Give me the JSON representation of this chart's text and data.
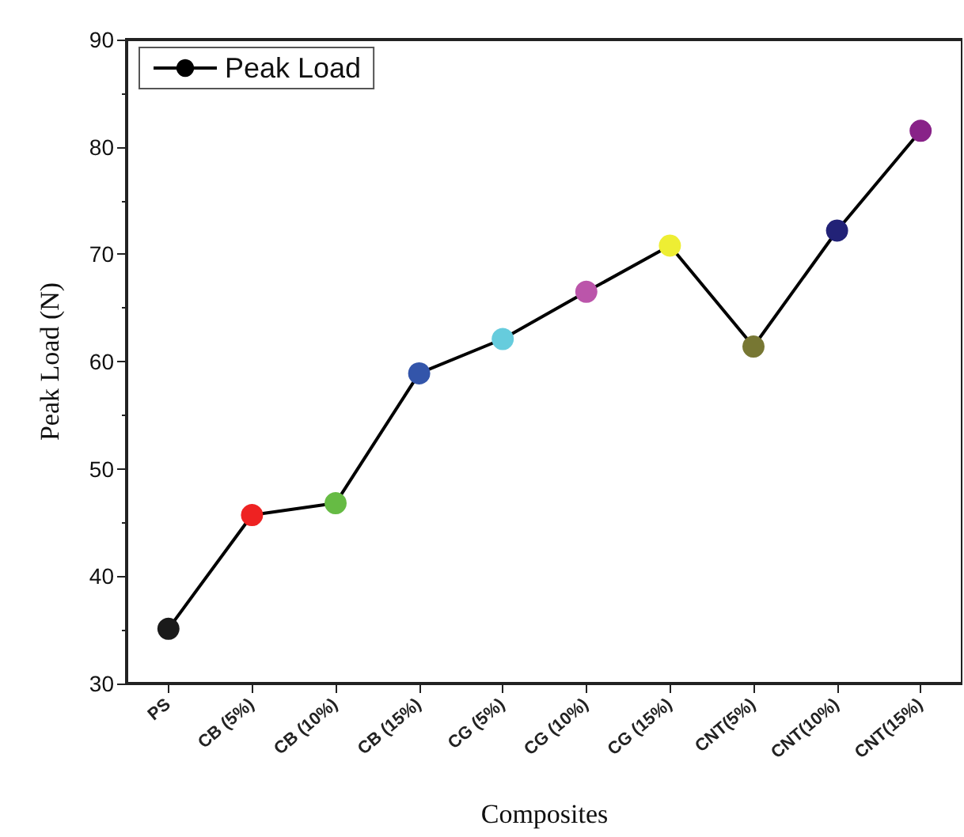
{
  "chart_data": {
    "type": "line",
    "xlabel": "Composites",
    "ylabel": "Peak Load (N)",
    "categories": [
      "PS",
      "CB (5%)",
      "CB (10%)",
      "CB (15%)",
      "CG (5%)",
      "CG (10%)",
      "CG (15%)",
      "CNT(5%)",
      "CNT(10%)",
      "CNT(15%)"
    ],
    "series": [
      {
        "name": "Peak Load",
        "color": "#000000",
        "values": [
          35.1,
          45.7,
          46.8,
          58.9,
          62.1,
          66.5,
          70.8,
          61.4,
          72.2,
          81.5
        ],
        "colors": [
          "#1a1a1a",
          "#ee2222",
          "#66bb44",
          "#3355aa",
          "#66ccdd",
          "#bb55aa",
          "#eeee33",
          "#777733",
          "#222277",
          "#882288"
        ]
      }
    ],
    "ylim": [
      30,
      90
    ],
    "yticks": [
      30,
      40,
      50,
      60,
      70,
      80,
      90
    ],
    "grid": false,
    "legend": "top left",
    "marker": "circle",
    "line_style": "solid"
  }
}
